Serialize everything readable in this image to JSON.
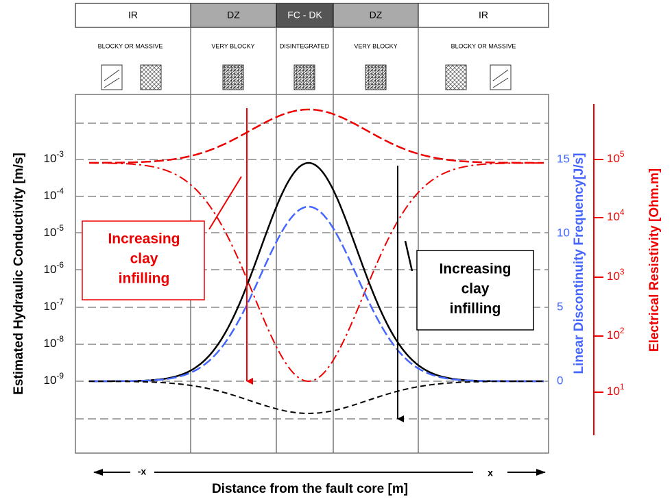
{
  "zones": [
    {
      "label": "IR"
    },
    {
      "label": "DZ"
    },
    {
      "label": "FC - DK"
    },
    {
      "label": "DZ"
    },
    {
      "label": "IR"
    }
  ],
  "rock_labels": [
    "BLOCKY OR MASSIVE",
    "VERY BLOCKY",
    "DISINTEGRATED",
    "VERY BLOCKY",
    "BLOCKY OR MASSIVE"
  ],
  "left_axis": {
    "title": "Estimated Hydraulic Conductivity [m/s]",
    "ticks": [
      {
        "base": "10",
        "exp": "-3"
      },
      {
        "base": "10",
        "exp": "-4"
      },
      {
        "base": "10",
        "exp": "-5"
      },
      {
        "base": "10",
        "exp": "-6"
      },
      {
        "base": "10",
        "exp": "-7"
      },
      {
        "base": "10",
        "exp": "-8"
      },
      {
        "base": "10",
        "exp": "-9"
      }
    ]
  },
  "blue_axis": {
    "title": "Linear Discontinuity Frequency[J/s]",
    "ticks": [
      "15",
      "10",
      "5",
      "0"
    ]
  },
  "red_axis": {
    "title": "Electrical Resistivity [Ohm.m]",
    "ticks": [
      {
        "base": "10",
        "exp": "5"
      },
      {
        "base": "10",
        "exp": "4"
      },
      {
        "base": "10",
        "exp": "3"
      },
      {
        "base": "10",
        "exp": "2"
      },
      {
        "base": "10",
        "exp": "1"
      }
    ]
  },
  "x_axis": {
    "title": "Distance from the fault core [m]",
    "left": "-x",
    "right": "x"
  },
  "annotations": [
    {
      "lines": [
        "Increasing",
        "clay",
        "infilling"
      ]
    },
    {
      "lines": [
        "Increasing",
        "clay",
        "infilling"
      ]
    }
  ]
}
